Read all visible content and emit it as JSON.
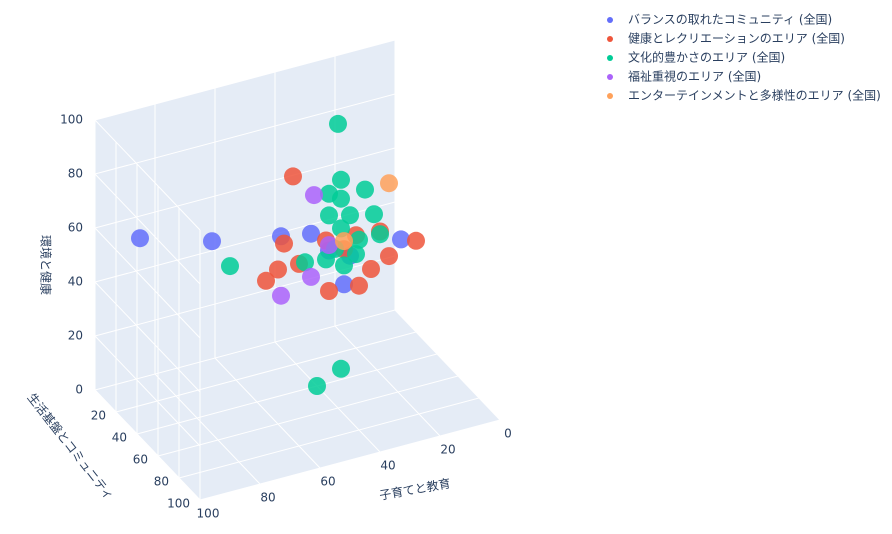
{
  "chart_data": {
    "type": "scatter3d",
    "xlabel": "子育てと教育",
    "ylabel": "生活基盤とコミュニティ",
    "zlabel": "環境と健康",
    "xlim": [
      0,
      100
    ],
    "xticks": [
      0,
      20,
      40,
      60,
      80,
      100
    ],
    "ylim": [
      0,
      100
    ],
    "yticks": [
      20,
      40,
      60,
      80,
      100
    ],
    "zlim": [
      0,
      100
    ],
    "zticks": [
      0,
      20,
      40,
      60,
      80,
      100
    ],
    "grid": true,
    "legend": "top-right",
    "series": [
      {
        "name": "バランスの取れたコミュニティ (全国)",
        "color": "#636efa",
        "x": [
          92,
          75,
          52,
          42,
          12,
          31,
          36,
          29
        ],
        "y": [
          20,
          40,
          40,
          40,
          40,
          40,
          40,
          40
        ],
        "z": [
          62,
          64,
          59,
          57,
          46,
          35,
          49,
          45
        ]
      },
      {
        "name": "健康とレクリエーションのエリア (全国)",
        "color": "#EF553B",
        "x": [
          48,
          51,
          53,
          57,
          46,
          37,
          36,
          26,
          19,
          7,
          16,
          22,
          31,
          27
        ],
        "y": [
          40,
          40,
          40,
          40,
          40,
          40,
          40,
          40,
          40,
          40,
          40,
          40,
          40,
          40
        ],
        "z": [
          80,
          56,
          47,
          44,
          47,
          53,
          34,
          33,
          51,
          44,
          41,
          38,
          48,
          52
        ]
      },
      {
        "name": "文化的豊かさのエリア (全国)",
        "color": "#00cc96",
        "x": [
          33,
          32,
          36,
          24,
          21,
          19,
          69,
          44,
          32,
          40,
          32,
          29,
          36,
          34,
          31,
          27,
          37,
          32,
          26
        ],
        "y": [
          40,
          40,
          40,
          40,
          40,
          40,
          40,
          40,
          40,
          40,
          40,
          40,
          40,
          40,
          40,
          40,
          40,
          40,
          40
        ],
        "z": [
          95,
          74,
          70,
          68,
          58,
          50,
          53,
          47,
          4,
          0,
          56,
          60,
          62,
          49,
          42,
          45,
          46,
          67,
          50
        ]
      },
      {
        "name": "福祉重視のエリア (全国)",
        "color": "#ab63fa",
        "x": [
          41,
          52,
          42,
          36
        ],
        "y": [
          40,
          40,
          40,
          40
        ],
        "z": [
          71,
          37,
          41,
          51
        ]
      },
      {
        "name": "エンターテインメントと多様性のエリア (全国)",
        "color": "#FFA15A",
        "x": [
          16,
          31
        ],
        "y": [
          40,
          40
        ],
        "z": [
          68,
          51
        ]
      }
    ]
  }
}
